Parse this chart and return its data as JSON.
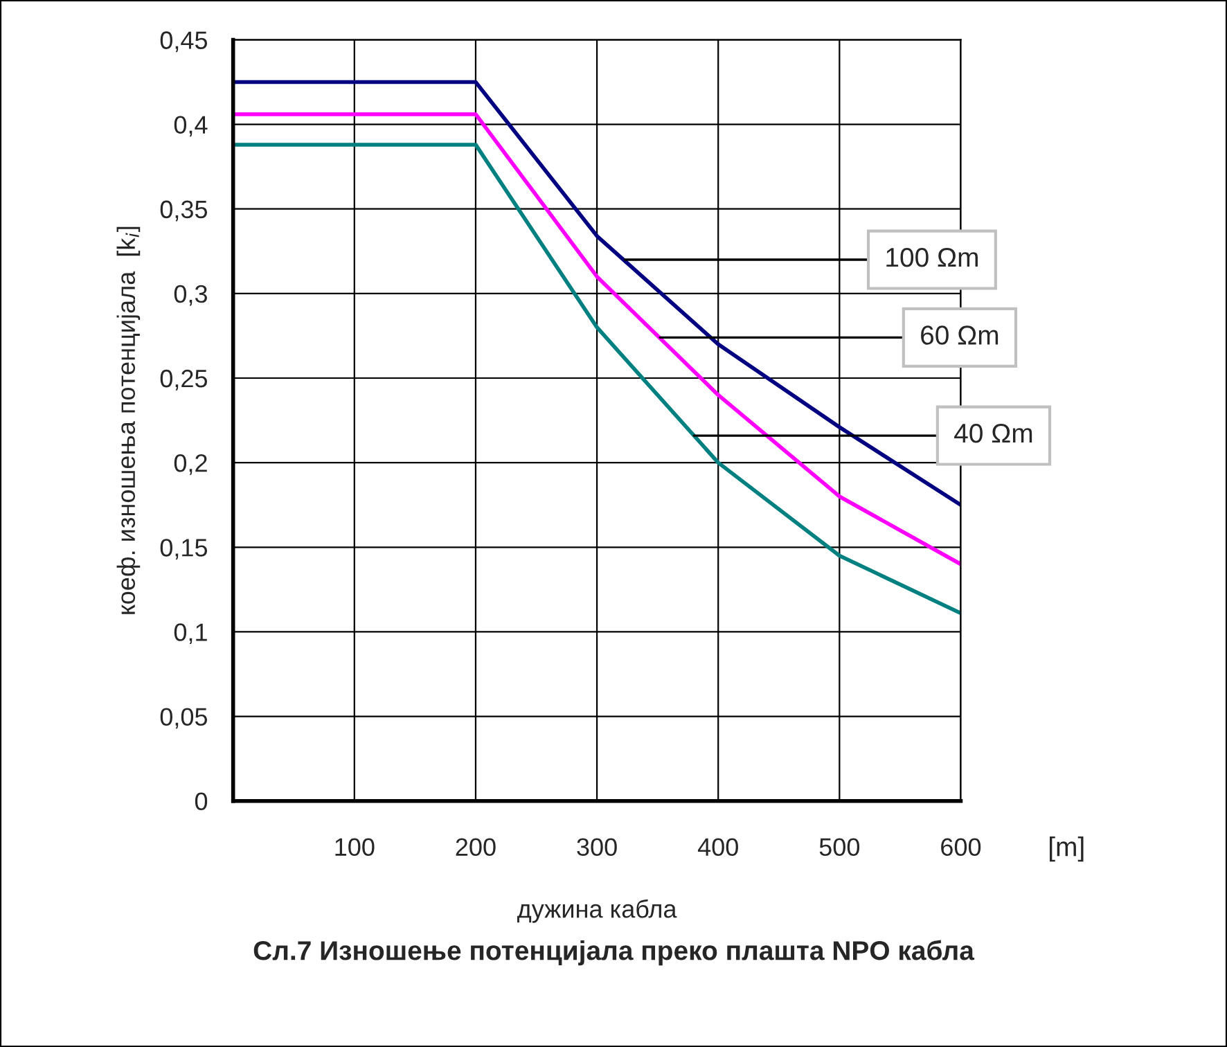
{
  "chart_data": {
    "type": "line",
    "title": "Сл.7 Изношење потенцијала преко плашта NPO кабла",
    "xlabel": "дужина кабла",
    "ylabel": "коеф. изношења потенцијала  [k$_{i}$]",
    "x": [
      0,
      200,
      300,
      400,
      500,
      600
    ],
    "series": [
      {
        "color": "#000080",
        "values": [
          0.425,
          0.425,
          0.334,
          0.27,
          0.221,
          0.175
        ]
      },
      {
        "color": "#ff00ff",
        "values": [
          0.406,
          0.406,
          0.31,
          0.24,
          0.18,
          0.14
        ]
      },
      {
        "color": "#008080",
        "values": [
          0.388,
          0.388,
          0.28,
          0.2,
          0.145,
          0.111
        ]
      }
    ],
    "xlim": [
      0,
      600
    ],
    "xticks": [
      100,
      200,
      300,
      400,
      500,
      600
    ],
    "ylim": [
      0,
      0.45
    ],
    "yticks": [
      0,
      {
        "value": 0.05,
        "label": "0,05"
      },
      {
        "value": 0.1,
        "label": "0,1"
      },
      {
        "value": 0.15,
        "label": "0,15"
      },
      {
        "value": 0.2,
        "label": "0,2"
      },
      {
        "value": 0.25,
        "label": "0,25"
      },
      {
        "value": 0.3,
        "label": "0,3"
      },
      {
        "value": 0.35,
        "label": "0,35"
      },
      {
        "value": 0.4,
        "label": "0,4"
      },
      {
        "value": 0.45,
        "label": "0,45"
      }
    ],
    "annotations": [
      {
        "text": "100 Ωm",
        "x": 323,
        "y": 0.32
      },
      {
        "text": "60 Ωm",
        "x": 352,
        "y": 0.274
      },
      {
        "text": "40 Ωm",
        "x": 380,
        "y": 0.216
      },
      "[m]"
    ],
    "grid": true,
    "legend": false,
    "marker": "none",
    "line_style": "solid"
  }
}
